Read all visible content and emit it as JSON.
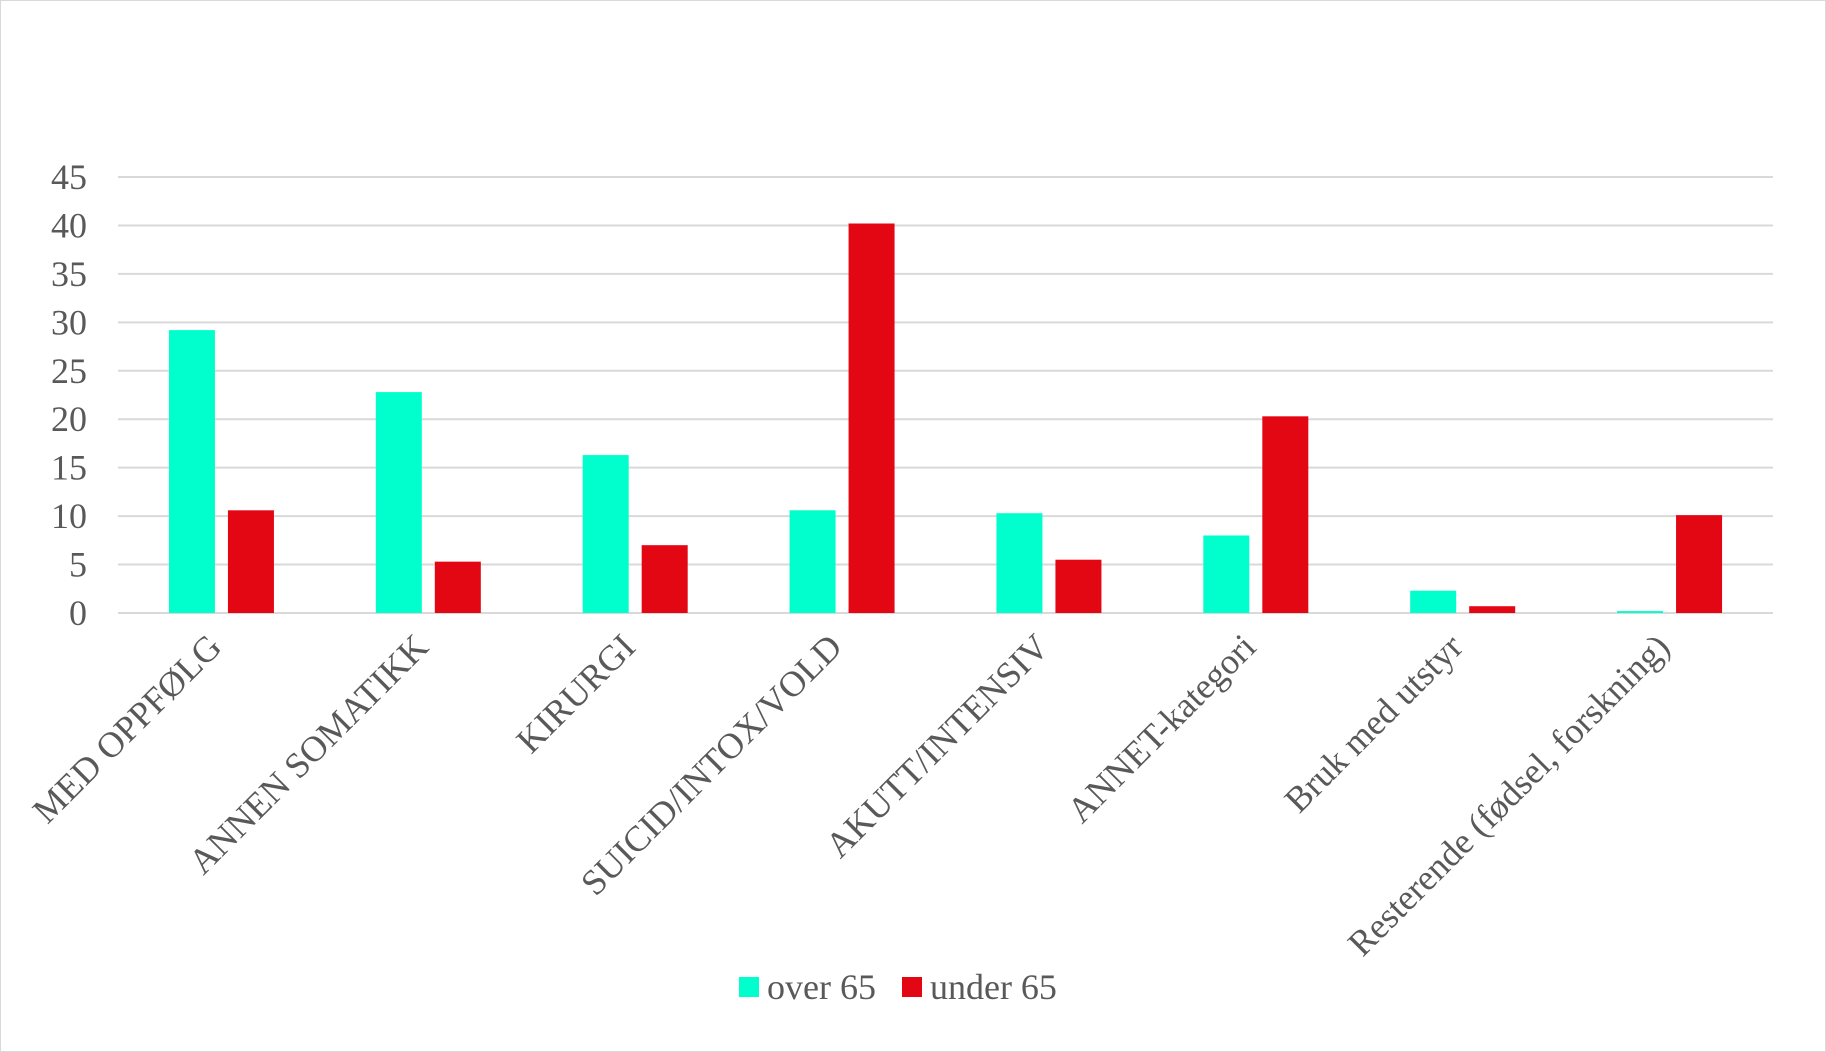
{
  "chart_data": {
    "type": "bar",
    "title": "",
    "xlabel": "",
    "ylabel": "",
    "ylim": [
      0,
      45
    ],
    "yticks": [
      0,
      5,
      10,
      15,
      20,
      25,
      30,
      35,
      40,
      45
    ],
    "grid": true,
    "legend_position": "bottom",
    "categories": [
      "MED OPPFØLG",
      "ANNEN SOMATIKK",
      "KIRURGI",
      "SUICID/INTOX/VOLD",
      "AKUTT/INTENSIV",
      "ANNET-kategori",
      "Bruk med utstyr",
      "Resterende (fødsel, forskning)"
    ],
    "series": [
      {
        "name": "over 65",
        "color": "#00ffcc",
        "values": [
          29.2,
          22.8,
          16.3,
          10.6,
          10.3,
          8.0,
          2.3,
          0.2
        ]
      },
      {
        "name": "under 65",
        "color": "#e30613",
        "values": [
          10.6,
          5.3,
          7.0,
          40.2,
          5.5,
          20.3,
          0.7,
          10.1
        ]
      }
    ]
  }
}
